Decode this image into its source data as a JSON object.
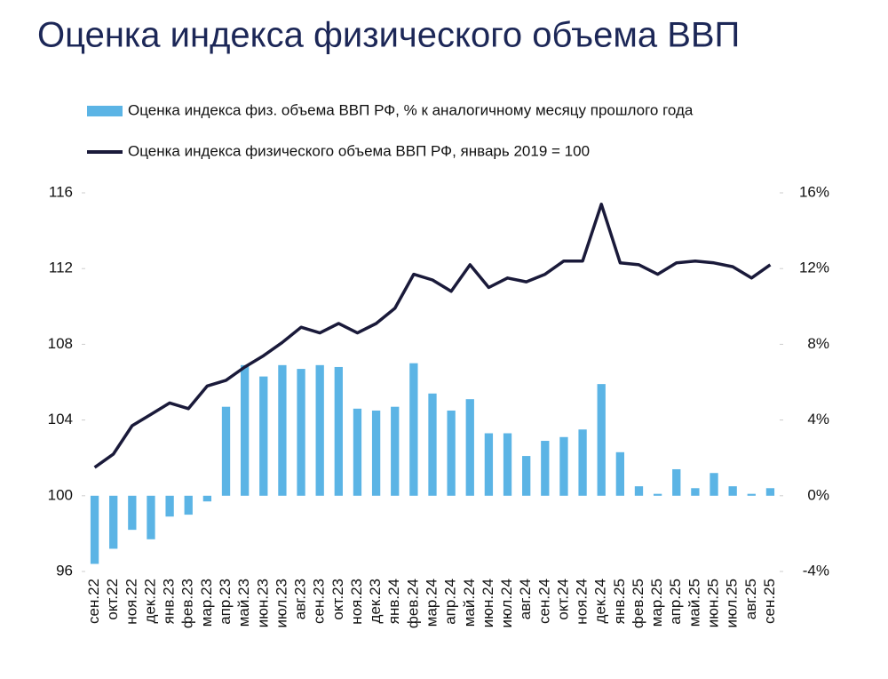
{
  "chart_data": {
    "type": "bar-line",
    "title": "Оценка индекса физического объема ВВП",
    "categories": [
      "сен.22",
      "окт.22",
      "ноя.22",
      "дек.22",
      "янв.23",
      "фев.23",
      "мар.23",
      "апр.23",
      "май.23",
      "июн.23",
      "июл.23",
      "авг.23",
      "сен.23",
      "окт.23",
      "ноя.23",
      "дек.23",
      "янв.24",
      "фев.24",
      "мар.24",
      "апр.24",
      "май.24",
      "июн.24",
      "июл.24",
      "авг.24",
      "сен.24",
      "окт.24",
      "ноя.24",
      "дек.24",
      "янв.25",
      "фев.25",
      "мар.25",
      "апр.25",
      "май.25",
      "июн.25",
      "июл.25",
      "авг.25",
      "сен.25"
    ],
    "series": [
      {
        "name": "Оценка индекса физ. объема ВВП РФ, % к аналогичному месяцу прошлого года",
        "type": "bar",
        "axis": "y2",
        "color": "#5bb4e5",
        "values": [
          -3.6,
          -2.8,
          -1.8,
          -2.3,
          -1.1,
          -1.0,
          -0.3,
          4.7,
          6.9,
          6.3,
          6.9,
          6.7,
          6.9,
          6.8,
          4.6,
          4.5,
          4.7,
          7.0,
          5.4,
          4.5,
          5.1,
          3.3,
          3.3,
          2.1,
          2.9,
          3.1,
          3.5,
          5.9,
          2.3,
          0.5,
          0.1,
          1.4,
          0.4,
          1.2,
          0.5,
          0.1,
          0.4
        ]
      },
      {
        "name": "Оценка индекса физического объема ВВП РФ, январь 2019 = 100",
        "type": "line",
        "axis": "y",
        "color": "#1a1a3a",
        "values": [
          101.5,
          102.2,
          103.7,
          104.3,
          104.9,
          104.6,
          105.8,
          106.1,
          106.8,
          107.4,
          108.1,
          108.9,
          108.6,
          109.1,
          108.6,
          109.1,
          109.9,
          111.7,
          111.4,
          110.8,
          112.2,
          111.0,
          111.5,
          111.3,
          111.7,
          112.4,
          112.4,
          115.4,
          112.3,
          112.2,
          111.7,
          112.3,
          112.4,
          112.3,
          112.1,
          111.5,
          112.2
        ]
      }
    ],
    "ylim": [
      96,
      116
    ],
    "yticks": [
      96,
      100,
      104,
      108,
      112,
      116
    ],
    "y2lim": [
      -4,
      16
    ],
    "y2ticks": [
      {
        "value": -4,
        "label": "-4%"
      },
      {
        "value": 0,
        "label": "0%"
      },
      {
        "value": 4,
        "label": "4%"
      },
      {
        "value": 8,
        "label": "8%"
      },
      {
        "value": 12,
        "label": "12%"
      },
      {
        "value": 16,
        "label": "16%"
      }
    ],
    "grid": false,
    "legend": "top"
  }
}
